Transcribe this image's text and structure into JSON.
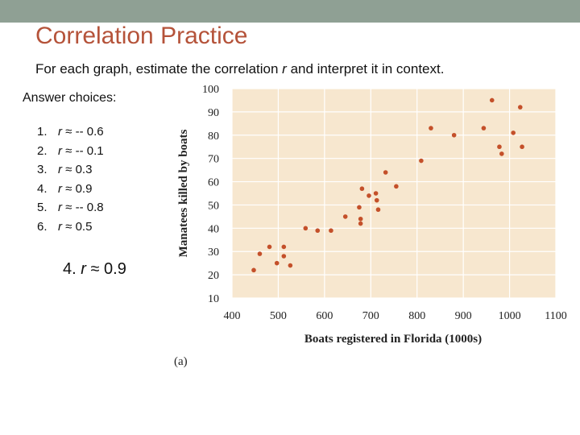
{
  "slide": {
    "title": "Correlation Practice",
    "instructions_prefix": "For each graph, estimate the correlation ",
    "instructions_var": "r",
    "instructions_suffix": " and interpret it in context.",
    "answer_header": "Answer choices:",
    "choices": [
      {
        "num": "1.",
        "var": "r",
        "rest": " ≈ -- 0.6"
      },
      {
        "num": "2.",
        "var": "r",
        "rest": " ≈ -- 0.1"
      },
      {
        "num": "3.",
        "var": "r",
        "rest": " ≈ 0.3"
      },
      {
        "num": "4.",
        "var": "r",
        "rest": " ≈ 0.9"
      },
      {
        "num": "5.",
        "var": "r",
        "rest": " ≈ -- 0.8"
      },
      {
        "num": "6.",
        "var": "r",
        "rest": " ≈ 0.5"
      }
    ],
    "selected": {
      "num": "4.",
      "var": "r",
      "rest": " ≈ 0.9"
    }
  },
  "colors": {
    "top_band": "#8fa094",
    "title": "#b5533a",
    "plot_background": "#f7e7cf",
    "grid": "#ffffff",
    "points": "#c4502a"
  },
  "chart_data": {
    "type": "scatter",
    "xlabel": "Boats registered in Florida (1000s)",
    "ylabel": "Manatees killed by boats",
    "panel_label": "(a)",
    "xlim": [
      400,
      1100
    ],
    "ylim": [
      10,
      100
    ],
    "xticks": [
      400,
      500,
      600,
      700,
      800,
      900,
      1000,
      1100
    ],
    "yticks": [
      10,
      20,
      30,
      40,
      50,
      60,
      70,
      80,
      90,
      100
    ],
    "grid": true,
    "points": [
      {
        "x": 447,
        "y": 22
      },
      {
        "x": 460,
        "y": 29
      },
      {
        "x": 481,
        "y": 32
      },
      {
        "x": 497,
        "y": 25
      },
      {
        "x": 512,
        "y": 32
      },
      {
        "x": 512,
        "y": 28
      },
      {
        "x": 526,
        "y": 24
      },
      {
        "x": 559,
        "y": 40
      },
      {
        "x": 585,
        "y": 39
      },
      {
        "x": 614,
        "y": 39
      },
      {
        "x": 645,
        "y": 45
      },
      {
        "x": 675,
        "y": 49
      },
      {
        "x": 678,
        "y": 44
      },
      {
        "x": 678,
        "y": 42
      },
      {
        "x": 681,
        "y": 57
      },
      {
        "x": 696,
        "y": 54
      },
      {
        "x": 711,
        "y": 55
      },
      {
        "x": 713,
        "y": 52
      },
      {
        "x": 716,
        "y": 48
      },
      {
        "x": 732,
        "y": 64
      },
      {
        "x": 755,
        "y": 58
      },
      {
        "x": 809,
        "y": 69
      },
      {
        "x": 830,
        "y": 83
      },
      {
        "x": 880,
        "y": 80
      },
      {
        "x": 944,
        "y": 83
      },
      {
        "x": 962,
        "y": 95
      },
      {
        "x": 978,
        "y": 75
      },
      {
        "x": 983,
        "y": 72
      },
      {
        "x": 1008,
        "y": 81
      },
      {
        "x": 1023,
        "y": 92
      },
      {
        "x": 1027,
        "y": 75
      }
    ]
  }
}
